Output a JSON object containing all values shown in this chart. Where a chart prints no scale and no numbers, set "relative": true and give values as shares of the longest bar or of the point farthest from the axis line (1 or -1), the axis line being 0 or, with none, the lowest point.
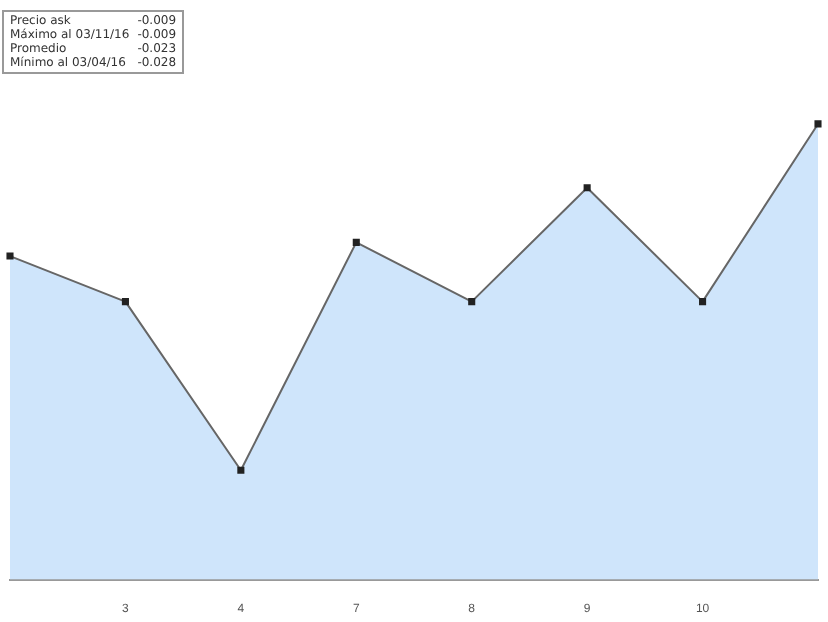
{
  "chart_data": {
    "type": "area",
    "relative": true,
    "categories": [
      null,
      "3",
      "4",
      "7",
      "8",
      "9",
      "10",
      null
    ],
    "series": [
      {
        "color": "#cfe5fb",
        "values": [
          0.71,
          0.61,
          0.24,
          0.74,
          0.61,
          0.86,
          0.61,
          1
        ]
      }
    ],
    "marker": "square",
    "grid": false,
    "legend": false,
    "annotations": [
      "Precio ask",
      "-0.009",
      "Máximo al 03/11/16",
      "-0.009",
      "Promedio",
      "-0.023",
      "Mínimo al 03/04/16",
      "-0.028"
    ]
  }
}
